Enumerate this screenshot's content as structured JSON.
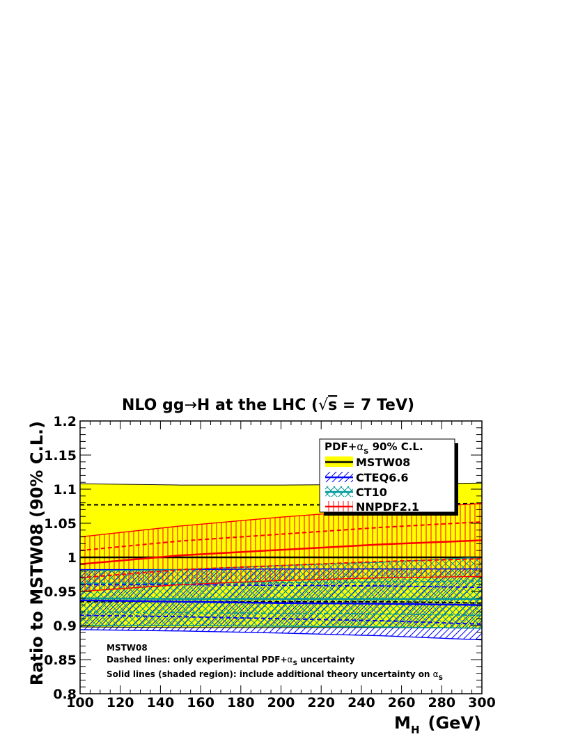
{
  "chart_data": {
    "type": "area",
    "title": {
      "pre": "NLO gg",
      "arrow": "→",
      "post": "H at the LHC (",
      "sqrt": "√",
      "s": "s",
      "tail": " = 7 TeV)"
    },
    "xlabel": {
      "main": "M",
      "sub": "H",
      "unit": "(GeV)"
    },
    "ylabel": "Ratio to MSTW08 (90% C.L.)",
    "xlim": [
      100,
      300
    ],
    "ylim": [
      0.8,
      1.2
    ],
    "xticks": [
      "100",
      "120",
      "140",
      "160",
      "180",
      "200",
      "220",
      "240",
      "260",
      "280",
      "300"
    ],
    "yticks": [
      "0.8",
      "0.85",
      "0.9",
      "0.95",
      "1",
      "1.05",
      "1.1",
      "1.15",
      "1.2"
    ],
    "x": [
      100,
      150,
      200,
      250,
      300
    ],
    "series": [
      {
        "name": "MSTW08",
        "color": "#000000",
        "fill": "#ffff00",
        "central": [
          1.0,
          1.0,
          1.0,
          1.0,
          1.0
        ],
        "upper": [
          1.108,
          1.106,
          1.106,
          1.107,
          1.109
        ],
        "lower": [
          0.898,
          0.897,
          0.897,
          0.897,
          0.896
        ],
        "exp_upper": [
          1.077,
          1.077,
          1.077,
          1.077,
          1.079
        ],
        "exp_lower": [
          0.935,
          0.935,
          0.935,
          0.935,
          0.933
        ]
      },
      {
        "name": "CTEQ6.6",
        "color": "#0000ff",
        "hatch": "diagonal",
        "central": [
          0.937,
          0.935,
          0.933,
          0.932,
          0.93
        ],
        "upper": [
          0.982,
          0.982,
          0.983,
          0.983,
          0.983
        ],
        "lower": [
          0.894,
          0.892,
          0.889,
          0.885,
          0.879
        ],
        "exp_upper": [
          0.96,
          0.96,
          0.959,
          0.958,
          0.956
        ],
        "exp_lower": [
          0.915,
          0.913,
          0.91,
          0.907,
          0.902
        ]
      },
      {
        "name": "CT10",
        "color": "#009999",
        "hatch": "cross",
        "central": [
          0.94,
          0.939,
          0.939,
          0.939,
          0.939
        ],
        "upper": [
          0.98,
          0.982,
          0.988,
          0.993,
          1.0
        ],
        "lower": [
          0.9,
          0.9,
          0.899,
          0.898,
          0.896
        ],
        "exp_upper": [
          0.962,
          0.962,
          0.963,
          0.964,
          0.965
        ],
        "exp_lower": [
          0.92,
          0.919,
          0.918,
          0.917,
          0.915
        ]
      },
      {
        "name": "NNPDF2.1",
        "color": "#ff0000",
        "hatch": "vertical",
        "central": [
          0.99,
          1.003,
          1.011,
          1.019,
          1.025
        ],
        "upper": [
          1.03,
          1.046,
          1.059,
          1.07,
          1.079
        ],
        "lower": [
          0.95,
          0.96,
          0.966,
          0.97,
          0.972
        ],
        "exp_upper": [
          1.01,
          1.024,
          1.034,
          1.044,
          1.052
        ],
        "exp_lower": [
          0.97,
          0.982,
          0.988,
          0.994,
          0.998
        ]
      }
    ],
    "legend": {
      "title_pre": "PDF+",
      "alpha": "α",
      "alpha_sub": "S",
      "title_post": " 90% C.L.",
      "position": "top-right"
    },
    "notes": {
      "line1": "MSTW08",
      "line2_pre": "Dashed lines: only experimental PDF+",
      "line2_alpha": "α",
      "line2_sub": "S",
      "line2_post": " uncertainty",
      "line3_pre": "Solid lines (shaded region): include additional theory uncertainty on ",
      "line3_alpha": "α",
      "line3_sub": "S"
    }
  }
}
